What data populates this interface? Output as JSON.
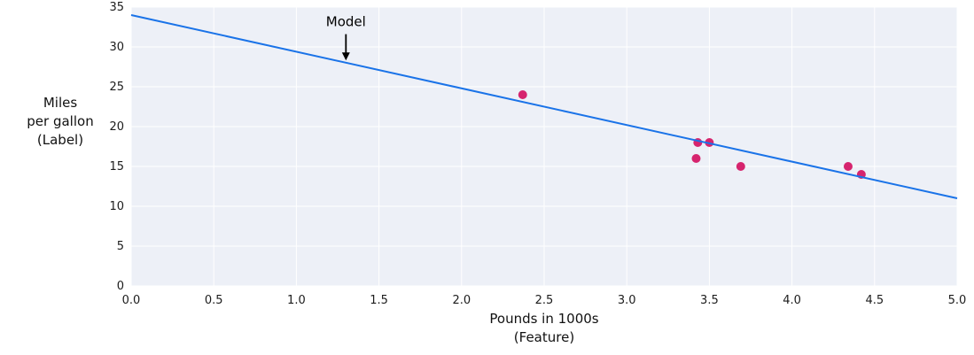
{
  "chart_data": {
    "type": "scatter",
    "title": "",
    "xlabel_lines": [
      "Pounds in 1000s",
      "(Feature)"
    ],
    "ylabel_lines": [
      "Miles",
      "per gallon",
      "(Label)"
    ],
    "xlim": [
      0,
      5
    ],
    "ylim": [
      0,
      35
    ],
    "xticks": [
      "0.0",
      "0.5",
      "1.0",
      "1.5",
      "2.0",
      "2.5",
      "3.0",
      "3.5",
      "4.0",
      "4.5",
      "5.0"
    ],
    "yticks": [
      "0",
      "5",
      "10",
      "15",
      "20",
      "25",
      "30",
      "35"
    ],
    "grid": true,
    "legend_position": "none",
    "plot_bg": "#edf0f7",
    "grid_color": "#ffffff",
    "tick_color": "#1c1c1c",
    "series": [
      {
        "name": "data-points",
        "kind": "scatter",
        "color": "#d6246e",
        "points": [
          [
            2.37,
            24
          ],
          [
            3.43,
            18
          ],
          [
            3.5,
            18
          ],
          [
            3.42,
            16
          ],
          [
            3.69,
            15
          ],
          [
            4.34,
            15
          ],
          [
            4.42,
            14
          ]
        ]
      },
      {
        "name": "model-line",
        "kind": "line",
        "color": "#1a73e8",
        "points": [
          [
            0,
            34
          ],
          [
            5,
            11
          ]
        ]
      }
    ],
    "annotation": {
      "text": "Model",
      "x": 1.3,
      "text_y": 32.6,
      "arrow_start_y": 31.6,
      "arrow_end_y": 28.3,
      "color": "#000000"
    }
  }
}
